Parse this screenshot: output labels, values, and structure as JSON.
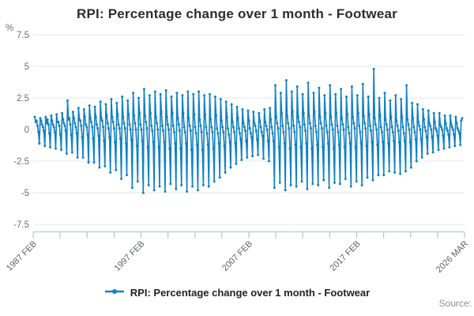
{
  "footer": {
    "source_label": "Source:"
  },
  "chart_data": {
    "type": "line",
    "title": "RPI: Percentage change over 1 month - Footwear",
    "ylabel_unit": "%",
    "xlabel": "",
    "ylabel": "",
    "ylim": [
      -7.5,
      7.5
    ],
    "y_ticks": [
      7.5,
      5,
      2.5,
      0,
      -2.5,
      -5,
      -7.5
    ],
    "x_tick_labels": [
      "1987 FEB",
      "1997 FEB",
      "2007 FEB",
      "2017 FEB",
      "2026 MAR"
    ],
    "x_minor_tick_count": 17,
    "grid": true,
    "legend_position": "bottom",
    "line_color": "#1181c2",
    "grid_color": "#e0e5ea",
    "axis_color": "#b7c6d8",
    "tick_label_color": "#6f6f6f",
    "x_label_color": "#5d6165",
    "x_start": "1987 FEB",
    "x_end": "2026 MAR",
    "frequency": "monthly",
    "series": [
      {
        "name": "RPI: Percentage change over 1 month - Footwear",
        "start_year": 1987,
        "start_month": 2,
        "values": [
          1.0,
          0.6,
          0.7,
          0.3,
          -0.2,
          -1.1,
          0.9,
          0.7,
          0.4,
          0.2,
          -0.1,
          -1.3,
          1.0,
          0.5,
          0.8,
          0.4,
          -0.3,
          -1.4,
          1.1,
          0.7,
          0.4,
          0.2,
          -0.2,
          -1.5,
          1.2,
          0.6,
          0.6,
          0.3,
          -0.4,
          -1.6,
          1.3,
          0.8,
          0.5,
          0.3,
          -0.1,
          -1.9,
          2.3,
          0.8,
          0.9,
          0.4,
          -0.4,
          -1.8,
          1.4,
          0.9,
          0.5,
          0.2,
          -0.3,
          -2.2,
          1.7,
          0.8,
          0.7,
          0.3,
          -0.6,
          -2.2,
          1.6,
          1.0,
          0.4,
          0.2,
          -0.4,
          -2.6,
          1.9,
          0.9,
          0.6,
          0.2,
          -0.7,
          -2.6,
          1.8,
          1.0,
          0.4,
          0.1,
          -0.5,
          -3.0,
          2.2,
          0.9,
          0.7,
          0.2,
          -0.9,
          -2.9,
          2.0,
          1.1,
          0.5,
          0.1,
          -0.6,
          -3.4,
          2.4,
          1.0,
          0.6,
          0.1,
          -1.0,
          -3.2,
          2.1,
          1.2,
          0.4,
          0.1,
          -0.7,
          -3.9,
          2.6,
          1.0,
          0.5,
          0.1,
          -1.1,
          -3.6,
          2.3,
          1.2,
          0.4,
          0.0,
          -0.8,
          -4.6,
          2.9,
          1.1,
          0.5,
          0.0,
          -1.3,
          -4.1,
          2.5,
          1.3,
          0.4,
          0.0,
          -0.9,
          -5.0,
          3.2,
          1.1,
          0.6,
          0.1,
          -1.4,
          -4.4,
          2.7,
          1.3,
          0.3,
          -0.1,
          -1.0,
          -4.8,
          3.0,
          1.0,
          0.5,
          0.0,
          -1.4,
          -4.5,
          2.8,
          1.4,
          0.3,
          -0.1,
          -1.0,
          -4.9,
          3.1,
          1.0,
          0.4,
          0.0,
          -1.5,
          -4.3,
          2.6,
          1.3,
          0.3,
          -0.2,
          -1.1,
          -4.7,
          2.9,
          0.9,
          0.4,
          -0.1,
          -1.5,
          -4.4,
          2.7,
          1.3,
          0.2,
          -0.2,
          -1.1,
          -4.9,
          3.0,
          0.9,
          0.3,
          -0.1,
          -1.6,
          -4.5,
          2.8,
          1.2,
          0.2,
          -0.3,
          -1.2,
          -4.8,
          3.0,
          0.8,
          0.3,
          -0.2,
          -1.6,
          -4.4,
          2.7,
          1.2,
          0.2,
          -0.3,
          -1.2,
          -4.5,
          2.8,
          0.8,
          0.2,
          -0.2,
          -1.5,
          -4.1,
          2.6,
          1.1,
          0.1,
          -0.3,
          -1.1,
          -3.8,
          2.4,
          0.7,
          0.2,
          -0.2,
          -1.3,
          -3.4,
          2.2,
          1.0,
          0.1,
          -0.4,
          -1.0,
          -3.0,
          2.0,
          0.6,
          0.2,
          -0.2,
          -1.1,
          -2.7,
          1.8,
          0.9,
          0.1,
          -0.3,
          -0.8,
          -2.4,
          1.6,
          0.5,
          0.2,
          -0.1,
          -0.9,
          -2.2,
          1.5,
          0.7,
          0.1,
          -0.3,
          -0.6,
          -2.1,
          1.4,
          0.5,
          0.3,
          -0.1,
          -0.8,
          -2.0,
          1.3,
          0.7,
          0.2,
          -0.2,
          -0.5,
          -2.3,
          1.6,
          0.6,
          0.3,
          0.0,
          -0.9,
          -2.5,
          1.7,
          0.8,
          0.2,
          -0.3,
          -0.9,
          -4.6,
          3.5,
          1.0,
          0.5,
          0.1,
          -1.4,
          -4.2,
          2.9,
          1.3,
          0.3,
          -0.2,
          -1.1,
          -4.8,
          3.9,
          1.1,
          0.5,
          0.1,
          -1.5,
          -4.4,
          3.0,
          1.4,
          0.3,
          -0.2,
          -1.2,
          -4.5,
          3.4,
          1.0,
          0.6,
          0.2,
          -1.4,
          -4.1,
          2.8,
          1.3,
          0.4,
          -0.1,
          -1.1,
          -4.7,
          3.7,
          1.1,
          0.5,
          0.1,
          -1.5,
          -4.3,
          2.9,
          1.4,
          0.3,
          -0.2,
          -1.2,
          -4.4,
          3.3,
          1.0,
          0.5,
          0.1,
          -1.4,
          -4.0,
          2.7,
          1.3,
          0.3,
          -0.2,
          -1.1,
          -4.6,
          3.5,
          1.0,
          0.4,
          0.0,
          -1.5,
          -4.2,
          2.8,
          1.3,
          0.3,
          -0.2,
          -1.2,
          -4.3,
          3.2,
          0.9,
          0.4,
          0.0,
          -1.4,
          -3.9,
          2.6,
          1.2,
          0.2,
          -0.3,
          -1.1,
          -4.5,
          3.4,
          1.0,
          0.5,
          0.1,
          -1.4,
          -4.1,
          2.7,
          1.3,
          0.3,
          -0.2,
          -1.1,
          -4.4,
          3.6,
          1.1,
          0.5,
          0.1,
          -1.3,
          -3.8,
          2.6,
          1.2,
          0.3,
          -0.1,
          -1.0,
          -4.0,
          4.8,
          0.9,
          0.4,
          0.0,
          -1.2,
          -3.6,
          2.5,
          1.1,
          0.2,
          -0.2,
          -1.0,
          -3.6,
          2.9,
          0.8,
          0.4,
          0.0,
          -1.1,
          -3.3,
          2.3,
          1.0,
          0.2,
          -0.2,
          -0.9,
          -3.4,
          2.7,
          0.7,
          0.3,
          -0.1,
          -1.0,
          -3.5,
          2.4,
          1.0,
          0.2,
          -0.3,
          -0.9,
          -3.3,
          3.5,
          0.8,
          0.4,
          0.0,
          -1.0,
          -3.0,
          2.1,
          0.9,
          0.2,
          -0.2,
          -0.8,
          -2.5,
          2.0,
          0.6,
          0.3,
          0.0,
          -0.8,
          -2.2,
          1.6,
          0.8,
          0.2,
          -0.1,
          -0.6,
          -1.9,
          1.5,
          0.5,
          0.3,
          0.0,
          -0.6,
          -1.8,
          1.3,
          0.6,
          0.1,
          -0.1,
          -0.5,
          -1.6,
          1.3,
          0.4,
          0.2,
          0.0,
          -0.5,
          -1.5,
          1.1,
          0.5,
          0.1,
          -0.1,
          -0.4,
          -1.4,
          1.1,
          0.4,
          0.2,
          0.0,
          -0.4,
          -1.3,
          1.0,
          0.5,
          0.1,
          -0.1,
          -0.3,
          -1.2,
          0.7,
          0.9
        ]
      }
    ]
  }
}
